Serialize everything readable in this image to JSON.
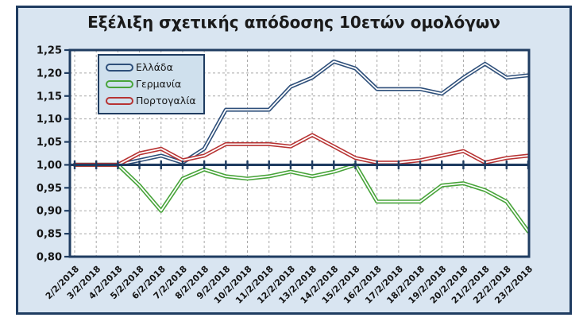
{
  "title": "Εξέλιξη σχετικής απόδοσης 10ετών ομολόγων",
  "chart_data": {
    "type": "line",
    "title": "Εξέλιξη σχετικής απόδοσης 10ετών ομολόγων",
    "categories": [
      "2/2/2018",
      "3/2/2018",
      "4/2/2018",
      "5/2/2018",
      "6/2/2018",
      "7/2/2018",
      "8/2/2018",
      "9/2/2018",
      "10/2/2018",
      "11/2/2018",
      "12/2/2018",
      "13/2/2018",
      "14/2/2018",
      "15/2/2018",
      "16/2/2018",
      "17/2/2018",
      "18/2/2018",
      "19/2/2018",
      "20/2/2018",
      "21/2/2018",
      "22/2/2018",
      "23/2/2018"
    ],
    "series": [
      {
        "id": "greece",
        "name": "Ελλάδα",
        "color": "#2e4f7a",
        "values": [
          1.0,
          1.0,
          1.0,
          1.01,
          1.02,
          1.005,
          1.035,
          1.12,
          1.12,
          1.12,
          1.17,
          1.19,
          1.225,
          1.21,
          1.165,
          1.165,
          1.165,
          1.155,
          1.19,
          1.22,
          1.19,
          1.195
        ]
      },
      {
        "id": "germany",
        "name": "Γερμανία",
        "color": "#48a43a",
        "values": [
          1.0,
          1.0,
          1.0,
          0.955,
          0.9,
          0.97,
          0.99,
          0.975,
          0.97,
          0.975,
          0.985,
          0.975,
          0.985,
          1.0,
          0.92,
          0.92,
          0.92,
          0.955,
          0.96,
          0.945,
          0.92,
          0.855
        ]
      },
      {
        "id": "portugal",
        "name": "Πορτογαλία",
        "color": "#b73333",
        "values": [
          1.0,
          1.0,
          1.0,
          1.025,
          1.035,
          1.01,
          1.02,
          1.045,
          1.045,
          1.045,
          1.04,
          1.065,
          1.04,
          1.015,
          1.005,
          1.005,
          1.01,
          1.02,
          1.03,
          1.005,
          1.015,
          1.02
        ]
      }
    ],
    "ylim": [
      0.8,
      1.25
    ],
    "y_tick_step": 0.05,
    "y_axis": {
      "tick_labels": [
        "1,25",
        "1,20",
        "1,15",
        "1,10",
        "1,05",
        "1,00",
        "0,95",
        "0,90",
        "0,85",
        "0,80"
      ]
    },
    "x_axis": {
      "label_rotation_deg": -45
    },
    "baseline": 1.0,
    "grid": "dashed",
    "legend_position": "top-left"
  },
  "colors": {
    "frame_bg": "#d9e5f1",
    "frame_border": "#1f3c61",
    "plot_bg": "#ffffff",
    "gridline": "#a8a8a8",
    "axis": "#1f3c61",
    "legend_bg": "#cfe0ed",
    "legend_border": "#1f3c61",
    "line_core": "#ffffff"
  }
}
